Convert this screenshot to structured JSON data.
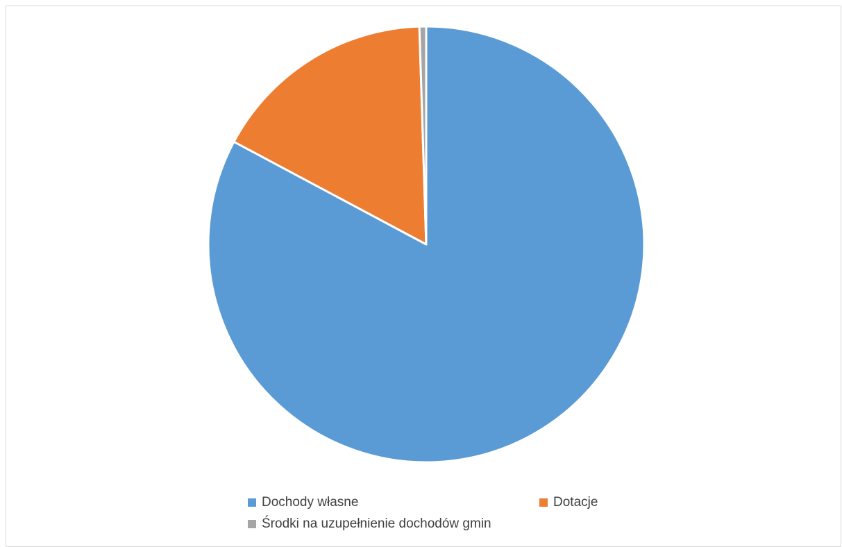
{
  "chart_data": {
    "type": "pie",
    "title": "",
    "categories": [
      "Dochody własne",
      "Dotacje",
      "Środki na uzupełnienie dochodów gmin"
    ],
    "values": [
      82.8,
      16.7,
      0.5
    ],
    "colors": [
      "#5B9BD5",
      "#ED7D31",
      "#A5A5A5"
    ],
    "legend": {
      "position": "bottom"
    }
  }
}
